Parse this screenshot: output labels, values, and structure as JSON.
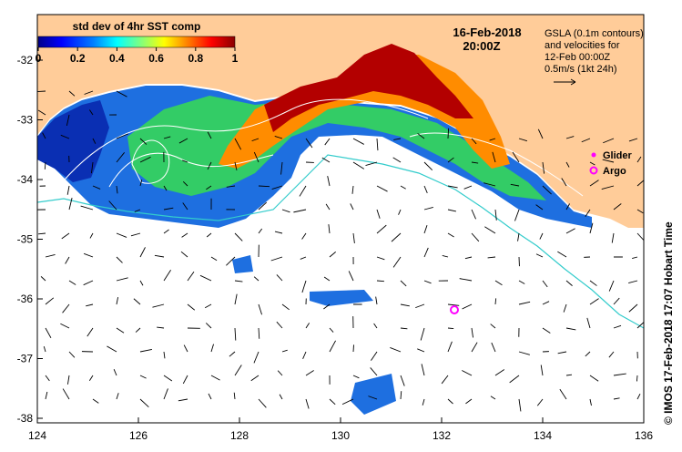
{
  "colorbar": {
    "title": "std dev of 4hr SST comp",
    "ticks": [
      "0",
      "0.2",
      "0.4",
      "0.6",
      "0.8",
      "1"
    ],
    "colors": [
      "#00008b",
      "#0000ff",
      "#007fff",
      "#00ffff",
      "#7fff7f",
      "#ffff00",
      "#ff7f00",
      "#ff0000",
      "#8b0000"
    ]
  },
  "map": {
    "date": "16-Feb-2018",
    "time": "20:00Z",
    "info_lines": [
      "GSLA (0.1m contours)",
      "and velocities for",
      "12-Feb 00:00Z",
      "0.5m/s (1kt 24h)"
    ],
    "legend": [
      {
        "label": "Glider",
        "color": "#ff00ff"
      },
      {
        "label": "Argo",
        "color": "#ff00ff"
      }
    ],
    "credit": "© IMOS 17-Feb-2018 17:07 Hobart Time",
    "x_ticks": [
      "124",
      "126",
      "128",
      "130",
      "132",
      "134",
      "136"
    ],
    "y_ticks": [
      "-32",
      "-33",
      "-34",
      "-35",
      "-36",
      "-37",
      "-38"
    ],
    "land_color": "#ffcc99",
    "ocean_color": "#ffffff",
    "contour_color": "#ffffff",
    "bathy_color": "#33cccc"
  }
}
